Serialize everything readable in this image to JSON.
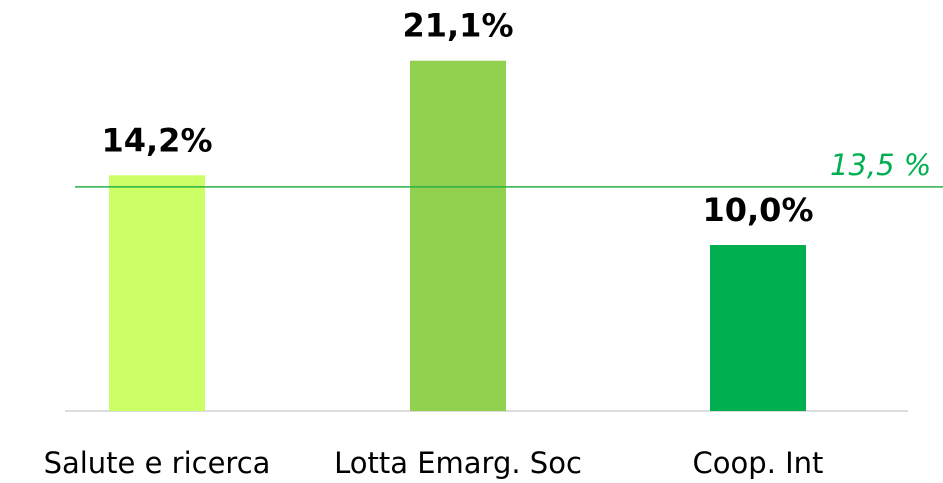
{
  "chart_data": {
    "type": "bar",
    "categories": [
      "Salute e ricerca",
      "Lotta Emarg. Soc",
      "Coop. Int"
    ],
    "values": [
      14.2,
      21.1,
      10.0
    ],
    "value_labels": [
      "14,2%",
      "21,1%",
      "10,0%"
    ],
    "colors": [
      "#ccff66",
      "#92d050",
      "#00b050"
    ],
    "ylim": [
      0,
      25
    ],
    "reference_line": {
      "value": 13.5,
      "label": "13,5 %",
      "color": "#2ab04a"
    }
  }
}
